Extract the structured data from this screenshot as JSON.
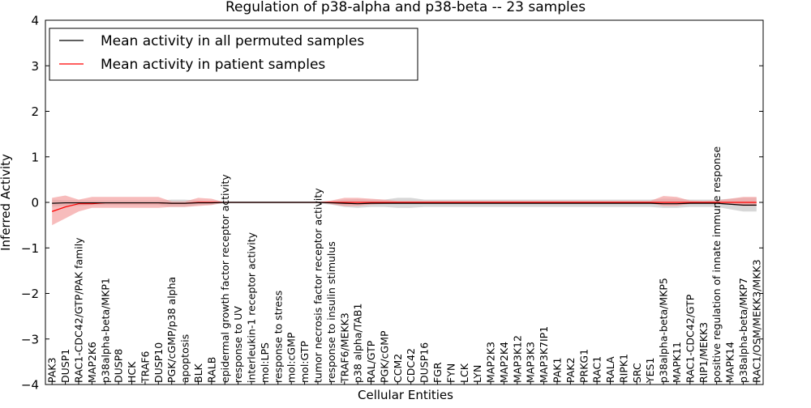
{
  "chart_data": {
    "type": "line",
    "title": "Regulation of p38-alpha and p38-beta -- 23 samples",
    "xlabel": "Cellular Entities",
    "ylabel": "Inferred Activity",
    "ylim": [
      -4,
      4
    ],
    "yticks": [
      -4,
      -3,
      -2,
      -1,
      0,
      1,
      2,
      3,
      4
    ],
    "ytick_labels": [
      "−4",
      "−3",
      "−2",
      "−1",
      "0",
      "1",
      "2",
      "3",
      "4"
    ],
    "grid": false,
    "legend_position": "top-left",
    "categories": [
      "PAK3",
      "DUSP1",
      "RAC1-CDC42/GTP/PAK family",
      "MAP2K6",
      "p38alpha-beta/MKP1",
      "DUSP8",
      "HCK",
      "TRAF6",
      "DUSP10",
      "PGK/cGMP/p38 alpha",
      "apoptosis",
      "BLK",
      "RALB",
      "epidermal growth factor receptor activity",
      "response to UV",
      "interleukin-1 receptor activity",
      "mol:LPS",
      "response to stress",
      "mol:cGMP",
      "mol:GTP",
      "tumor necrosis factor receptor activity",
      "response to insulin stimulus",
      "TRAF6/MEKK3",
      "p38 alpha/TAB1",
      "RAL/GTP",
      "PGK/cGMP",
      "CCM2",
      "CDC42",
      "DUSP16",
      "FGR",
      "FYN",
      "LCK",
      "LYN",
      "MAP2K3",
      "MAP2K4",
      "MAP3K12",
      "MAP3K3",
      "MAP3K7IP1",
      "PAK1",
      "PAK2",
      "PRKG1",
      "RAC1",
      "RALA",
      "RIPK1",
      "SRC",
      "YES1",
      "p38alpha-beta/MKP5",
      "MAPK11",
      "RAC1-CDC42/GTP",
      "RIP1/MEKK3",
      "positive regulation of innate immune response",
      "MAPK14",
      "p38alpha-beta/MKP7",
      "RAC1/OSM/MEKK3/MKK3"
    ],
    "series": [
      {
        "name": "Mean activity in all permuted samples",
        "color": "#000000",
        "band_color": "#bdbdbd",
        "values": [
          -0.02,
          -0.01,
          -0.01,
          -0.01,
          -0.01,
          -0.01,
          -0.01,
          -0.01,
          -0.01,
          -0.02,
          -0.02,
          -0.01,
          -0.01,
          0,
          0,
          0,
          0,
          0,
          0,
          0,
          0,
          -0.01,
          -0.02,
          -0.03,
          -0.02,
          -0.02,
          -0.02,
          -0.02,
          -0.02,
          -0.02,
          -0.02,
          -0.02,
          -0.02,
          -0.02,
          -0.02,
          -0.02,
          -0.02,
          -0.02,
          -0.02,
          -0.02,
          -0.02,
          -0.02,
          -0.02,
          -0.02,
          -0.02,
          -0.02,
          -0.03,
          -0.03,
          -0.02,
          -0.02,
          -0.02,
          -0.04,
          -0.06,
          -0.06
        ],
        "lower": [
          -0.1,
          -0.08,
          -0.08,
          -0.06,
          -0.06,
          -0.06,
          -0.06,
          -0.06,
          -0.06,
          -0.1,
          -0.1,
          -0.06,
          -0.05,
          -0.02,
          -0.02,
          -0.02,
          -0.02,
          -0.02,
          -0.02,
          -0.02,
          -0.02,
          -0.05,
          -0.1,
          -0.12,
          -0.1,
          -0.1,
          -0.12,
          -0.12,
          -0.1,
          -0.1,
          -0.1,
          -0.1,
          -0.1,
          -0.1,
          -0.1,
          -0.1,
          -0.1,
          -0.1,
          -0.1,
          -0.1,
          -0.1,
          -0.1,
          -0.1,
          -0.1,
          -0.1,
          -0.1,
          -0.12,
          -0.12,
          -0.1,
          -0.1,
          -0.1,
          -0.15,
          -0.2,
          -0.2
        ],
        "upper": [
          0.06,
          0.05,
          0.05,
          0.04,
          0.04,
          0.04,
          0.04,
          0.04,
          0.04,
          0.06,
          0.06,
          0.04,
          0.03,
          0.02,
          0.02,
          0.02,
          0.02,
          0.02,
          0.02,
          0.02,
          0.02,
          0.03,
          0.06,
          0.07,
          0.06,
          0.06,
          0.1,
          0.1,
          0.06,
          0.06,
          0.06,
          0.06,
          0.06,
          0.06,
          0.06,
          0.06,
          0.06,
          0.06,
          0.06,
          0.06,
          0.06,
          0.06,
          0.06,
          0.06,
          0.06,
          0.06,
          0.08,
          0.08,
          0.06,
          0.06,
          0.06,
          0.08,
          0.1,
          0.1
        ]
      },
      {
        "name": "Mean activity in patient samples",
        "color": "#ff0000",
        "band_color": "#f4a0a0",
        "values": [
          -0.2,
          -0.1,
          -0.03,
          -0.03,
          -0.01,
          -0.01,
          -0.01,
          -0.01,
          -0.01,
          -0.02,
          -0.02,
          0,
          0,
          0,
          0,
          0,
          0,
          0,
          0,
          0,
          0,
          0,
          0,
          0,
          0,
          0,
          0,
          0,
          0,
          0,
          0,
          0,
          0,
          0,
          0,
          0,
          0,
          0,
          0,
          0,
          0,
          0,
          0,
          0,
          0,
          0,
          0,
          0,
          0,
          0,
          0,
          0,
          0,
          0
        ],
        "lower": [
          -0.5,
          -0.35,
          -0.2,
          -0.12,
          -0.12,
          -0.12,
          -0.12,
          -0.12,
          -0.12,
          -0.1,
          -0.1,
          -0.08,
          -0.06,
          0,
          0,
          0,
          0,
          0,
          0,
          0,
          0,
          -0.04,
          -0.08,
          -0.08,
          -0.05,
          -0.03,
          -0.02,
          -0.02,
          -0.02,
          -0.02,
          -0.02,
          -0.02,
          -0.02,
          -0.02,
          -0.02,
          -0.02,
          -0.02,
          -0.02,
          -0.02,
          -0.02,
          -0.02,
          -0.02,
          -0.02,
          -0.02,
          -0.02,
          -0.02,
          -0.08,
          -0.08,
          -0.03,
          -0.02,
          -0.02,
          -0.05,
          -0.08,
          -0.08
        ],
        "upper": [
          0.1,
          0.15,
          0.06,
          0.12,
          0.12,
          0.12,
          0.12,
          0.12,
          0.12,
          0.02,
          0.02,
          0.1,
          0.08,
          0,
          0,
          0,
          0,
          0,
          0,
          0,
          0,
          0.04,
          0.1,
          0.1,
          0.08,
          0.06,
          0.03,
          0.03,
          0.03,
          0.03,
          0.03,
          0.03,
          0.03,
          0.03,
          0.03,
          0.03,
          0.03,
          0.03,
          0.03,
          0.03,
          0.03,
          0.03,
          0.03,
          0.03,
          0.03,
          0.03,
          0.14,
          0.12,
          0.04,
          0.03,
          0.04,
          0.08,
          0.12,
          0.12
        ]
      }
    ]
  }
}
